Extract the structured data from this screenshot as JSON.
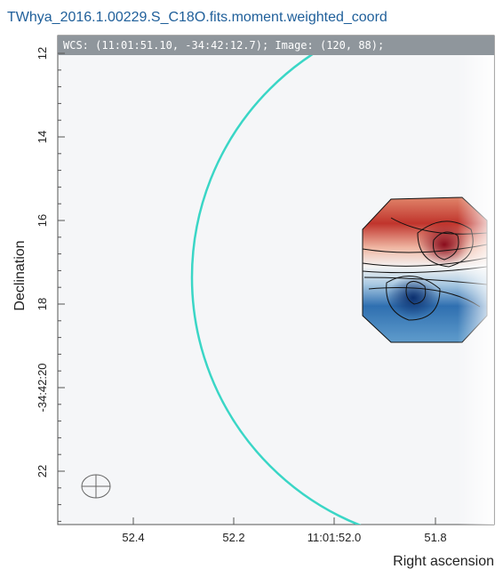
{
  "header": {
    "title": "TWhya_2016.1.00229.S_C18O.fits.moment.weighted_coord"
  },
  "cursor_info": "WCS: (11:01:51.10, -34:42:12.7); Image: (120, 88);",
  "y_axis": {
    "label": "Declination",
    "ticks": [
      "12",
      "14",
      "16",
      "18",
      "-34:42:20",
      "22"
    ]
  },
  "x_axis": {
    "label": "Right ascension",
    "ticks": [
      "52.4",
      "52.2",
      "11:01:52.0",
      "51.8"
    ]
  }
}
